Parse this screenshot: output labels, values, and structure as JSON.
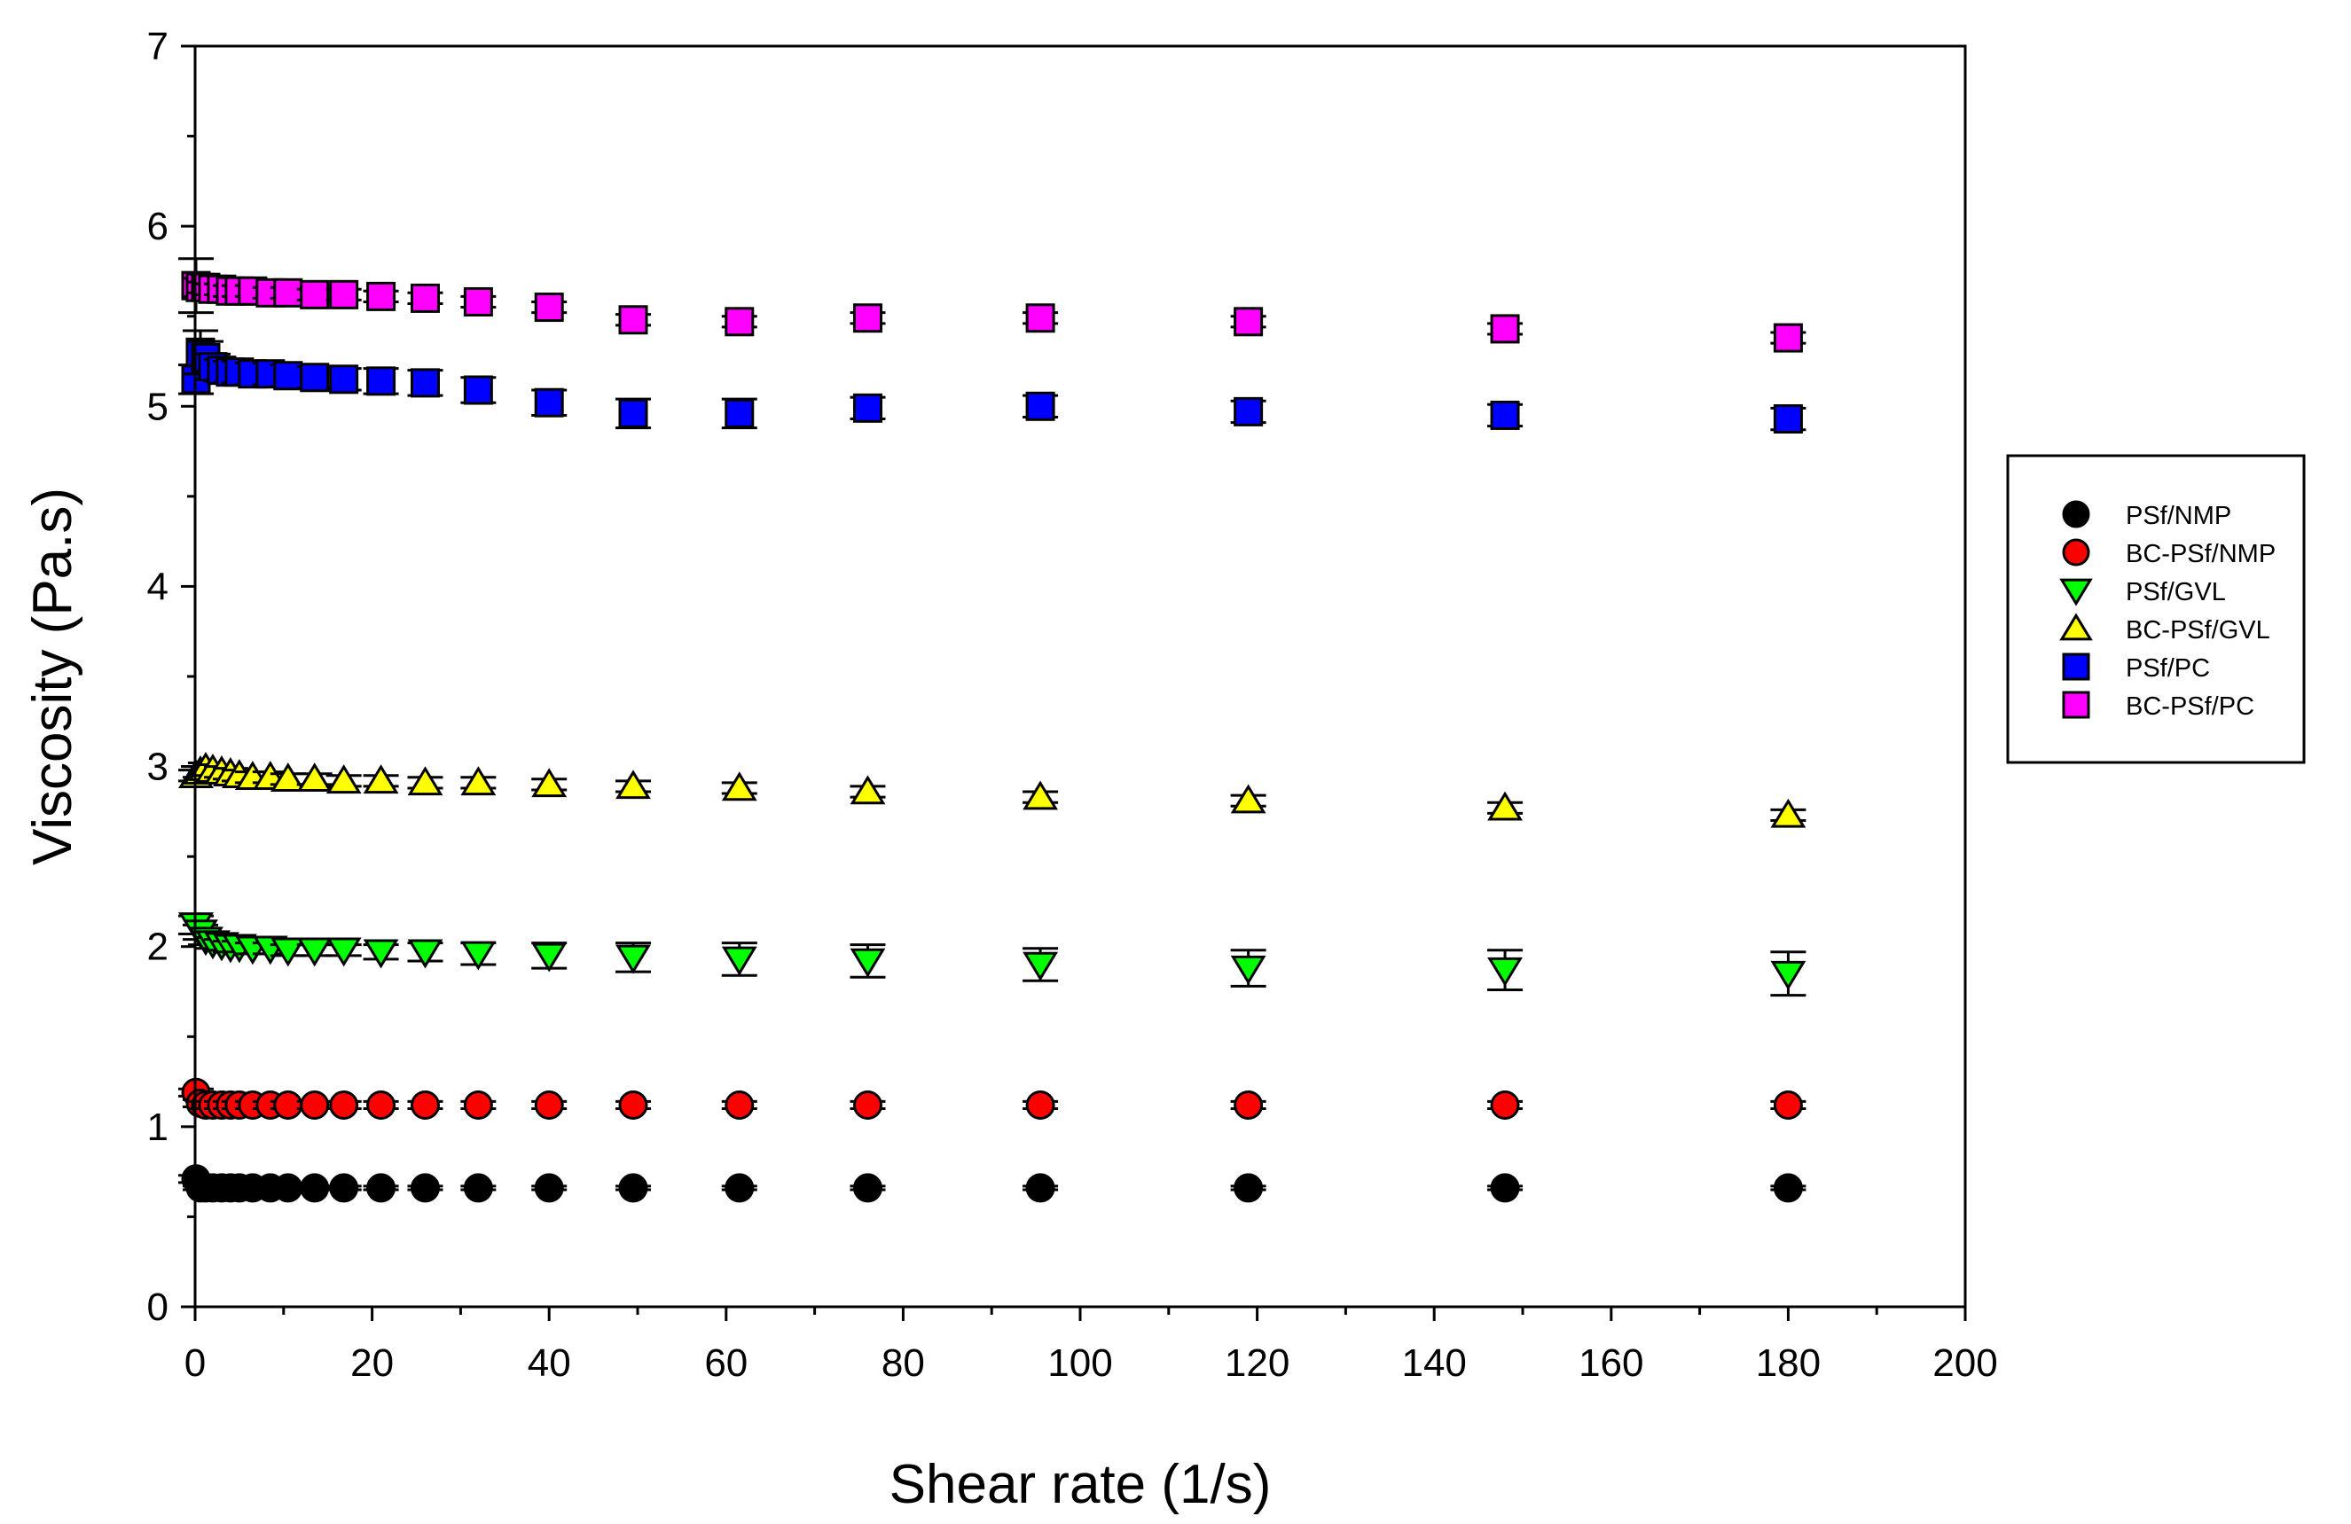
{
  "chart_data": {
    "type": "scatter",
    "title": "",
    "xlabel": "Shear rate (1/s)",
    "ylabel": "Viscosity (Pa.s)",
    "xlim": [
      0,
      200
    ],
    "ylim": [
      0,
      7
    ],
    "xticks": [
      0,
      20,
      40,
      60,
      80,
      100,
      120,
      140,
      160,
      180,
      200
    ],
    "yticks": [
      0,
      1,
      2,
      3,
      4,
      5,
      6,
      7
    ],
    "grid": false,
    "legend_position": "right",
    "x": [
      0.1,
      0.6,
      1.2,
      2,
      3,
      4,
      5,
      6.5,
      8.5,
      10.5,
      13.5,
      16.8,
      21,
      26,
      32,
      40,
      49.5,
      61.5,
      76,
      95.5,
      119,
      148,
      180
    ],
    "series": [
      {
        "name": "PSf/NMP",
        "marker": "circle",
        "color": "#000000",
        "values": [
          0.71,
          0.66,
          0.66,
          0.66,
          0.66,
          0.66,
          0.66,
          0.66,
          0.66,
          0.66,
          0.66,
          0.66,
          0.66,
          0.66,
          0.66,
          0.66,
          0.66,
          0.66,
          0.66,
          0.66,
          0.66,
          0.66,
          0.66
        ],
        "errors": [
          0.02,
          0.01,
          0.01,
          0.01,
          0.01,
          0.01,
          0.01,
          0.01,
          0.01,
          0.01,
          0.01,
          0.01,
          0.01,
          0.01,
          0.01,
          0.01,
          0.01,
          0.01,
          0.01,
          0.01,
          0.01,
          0.01,
          0.01
        ]
      },
      {
        "name": "BC-PSf/NMP",
        "marker": "circle",
        "color": "#ff0000",
        "values": [
          1.19,
          1.13,
          1.12,
          1.12,
          1.12,
          1.12,
          1.12,
          1.12,
          1.12,
          1.12,
          1.12,
          1.12,
          1.12,
          1.12,
          1.12,
          1.12,
          1.12,
          1.12,
          1.12,
          1.12,
          1.12,
          1.12,
          1.12
        ],
        "errors": [
          0.02,
          0.02,
          0.02,
          0.02,
          0.02,
          0.02,
          0.02,
          0.02,
          0.02,
          0.02,
          0.02,
          0.02,
          0.02,
          0.02,
          0.02,
          0.02,
          0.02,
          0.02,
          0.02,
          0.02,
          0.02,
          0.02,
          0.02
        ]
      },
      {
        "name": "PSf/GVL",
        "marker": "triangle-down",
        "color": "#00ff00",
        "values": [
          2.12,
          2.08,
          2.04,
          2.02,
          2.01,
          2.0,
          2.0,
          1.99,
          1.99,
          1.98,
          1.98,
          1.98,
          1.97,
          1.97,
          1.96,
          1.95,
          1.94,
          1.93,
          1.92,
          1.9,
          1.88,
          1.87,
          1.85
        ],
        "errors": [
          0.05,
          0.04,
          0.03,
          0.03,
          0.03,
          0.03,
          0.03,
          0.03,
          0.03,
          0.03,
          0.03,
          0.03,
          0.04,
          0.05,
          0.06,
          0.07,
          0.08,
          0.09,
          0.09,
          0.09,
          0.1,
          0.11,
          0.12
        ]
      },
      {
        "name": "BC-PSf/GVL",
        "marker": "triangle-up",
        "color": "#ffff00",
        "values": [
          2.95,
          2.97,
          2.99,
          2.98,
          2.97,
          2.96,
          2.95,
          2.94,
          2.94,
          2.93,
          2.93,
          2.92,
          2.92,
          2.91,
          2.91,
          2.9,
          2.89,
          2.88,
          2.86,
          2.83,
          2.81,
          2.77,
          2.73
        ],
        "errors": [
          0.03,
          0.03,
          0.03,
          0.03,
          0.03,
          0.03,
          0.03,
          0.03,
          0.03,
          0.03,
          0.03,
          0.03,
          0.03,
          0.03,
          0.03,
          0.03,
          0.03,
          0.03,
          0.03,
          0.03,
          0.03,
          0.03,
          0.03
        ]
      },
      {
        "name": "PSf/PC",
        "marker": "square",
        "color": "#0000ff",
        "values": [
          5.15,
          5.3,
          5.27,
          5.22,
          5.2,
          5.19,
          5.19,
          5.18,
          5.18,
          5.17,
          5.16,
          5.15,
          5.14,
          5.13,
          5.09,
          5.02,
          4.96,
          4.96,
          4.99,
          5.0,
          4.97,
          4.95,
          4.93
        ],
        "errors": [
          0.08,
          0.12,
          0.09,
          0.07,
          0.06,
          0.06,
          0.06,
          0.06,
          0.06,
          0.06,
          0.06,
          0.06,
          0.07,
          0.07,
          0.07,
          0.07,
          0.08,
          0.08,
          0.06,
          0.06,
          0.06,
          0.06,
          0.06
        ]
      },
      {
        "name": "BC-PSf/PC",
        "marker": "square",
        "color": "#ff00ff",
        "values": [
          5.67,
          5.66,
          5.66,
          5.65,
          5.65,
          5.64,
          5.64,
          5.64,
          5.63,
          5.63,
          5.62,
          5.62,
          5.61,
          5.6,
          5.58,
          5.55,
          5.48,
          5.47,
          5.49,
          5.49,
          5.47,
          5.43,
          5.38
        ],
        "errors": [
          0.15,
          0.05,
          0.03,
          0.03,
          0.03,
          0.03,
          0.03,
          0.03,
          0.03,
          0.03,
          0.03,
          0.03,
          0.03,
          0.03,
          0.03,
          0.03,
          0.03,
          0.03,
          0.03,
          0.03,
          0.03,
          0.03,
          0.03
        ]
      }
    ]
  }
}
